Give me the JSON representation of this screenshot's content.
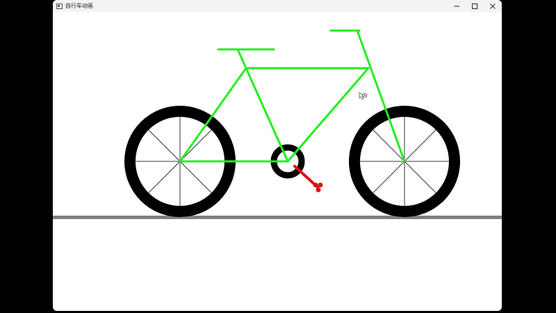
{
  "window": {
    "title": "自行车动画",
    "icon": "app-window-icon",
    "controls": [
      {
        "name": "minimize-button",
        "icon": "minimize-icon"
      },
      {
        "name": "maximize-button",
        "icon": "maximize-icon"
      },
      {
        "name": "close-button",
        "icon": "close-icon"
      }
    ]
  },
  "scene": {
    "background_color": "#ffffff",
    "ground_color": "#808080",
    "tire_color": "#000000",
    "spoke_color": "#333333",
    "frame_color": "#22ee22",
    "pedal_color": "#dd1111",
    "cursor_icon": "move-cursor-icon"
  }
}
